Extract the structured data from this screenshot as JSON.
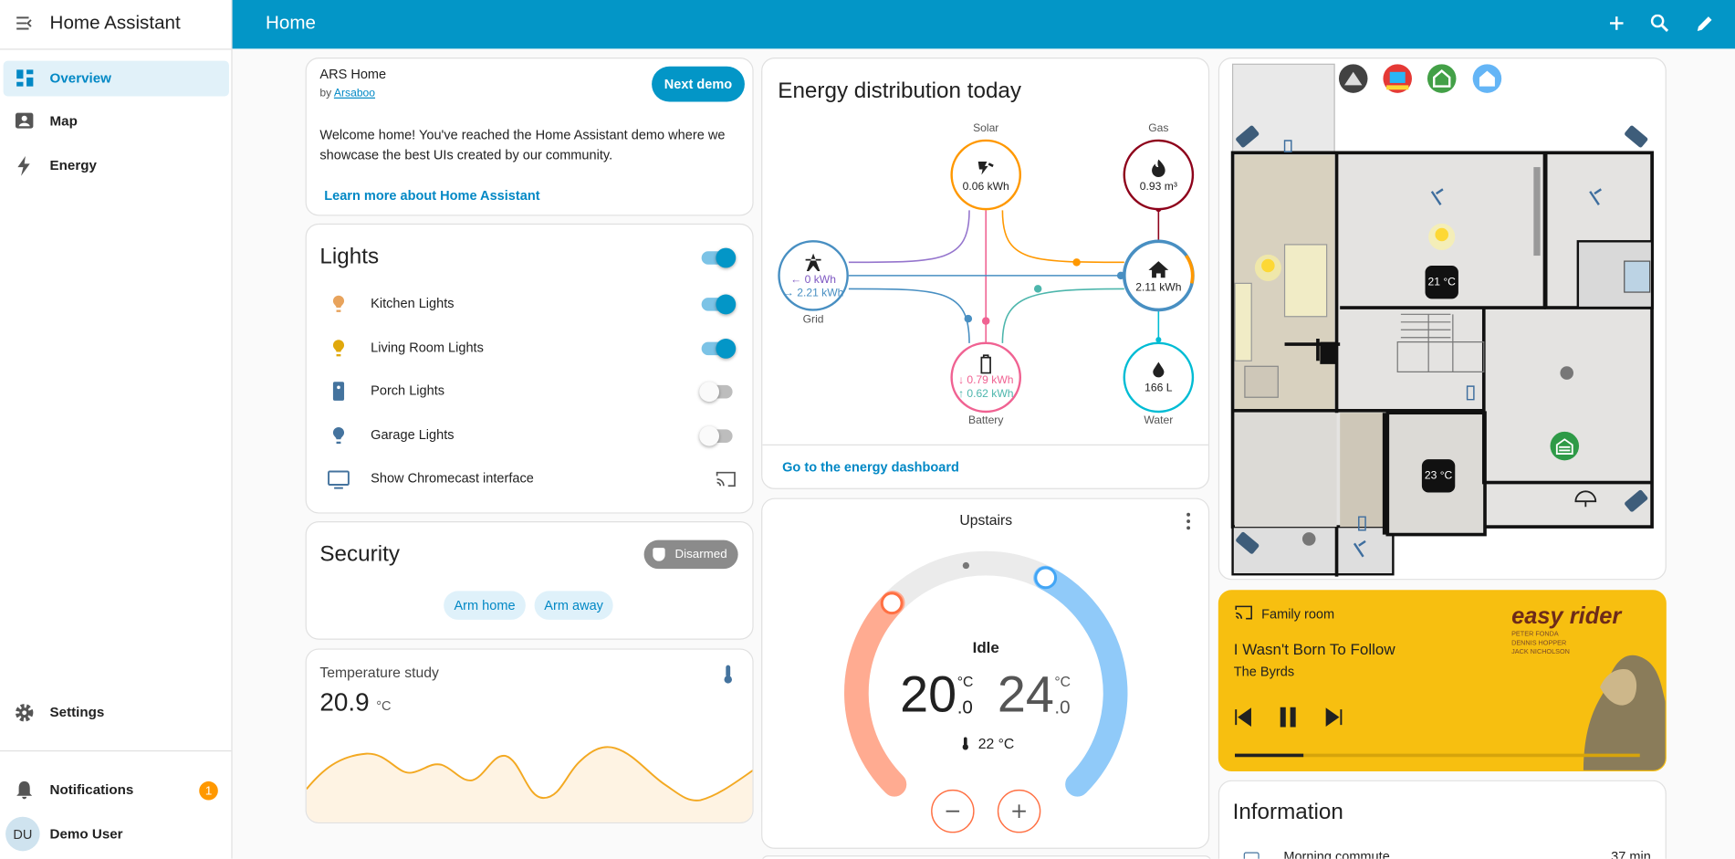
{
  "sidebar": {
    "title": "Home Assistant",
    "nav": [
      "Overview",
      "Map",
      "Energy"
    ],
    "settings": "Settings",
    "notifications": "Notifications",
    "notification_count": "1",
    "user_initials": "DU",
    "user_name": "Demo User"
  },
  "header": {
    "title": "Home"
  },
  "demo_card": {
    "title": "ARS Home",
    "by": "by",
    "author": "Arsaboo",
    "button": "Next demo",
    "text_lines": [
      "Welcome home! You've reached the Home Assistant demo where we",
      "showcase the best UIs created by our community."
    ],
    "link": "Learn more about Home Assistant"
  },
  "lights": {
    "title": "Lights",
    "on": true,
    "items": [
      {
        "name": "Kitchen Lights",
        "on": true
      },
      {
        "name": "Living Room Lights",
        "on": true
      },
      {
        "name": "Porch Lights",
        "on": false
      },
      {
        "name": "Garage Lights",
        "on": false
      },
      {
        "name": "Show Chromecast interface"
      }
    ]
  },
  "security": {
    "title": "Security",
    "state": "Disarmed",
    "buttons": [
      "Arm home",
      "Arm away"
    ]
  },
  "temperature": {
    "title": "Temperature study",
    "value": "20.9",
    "unit": "°C"
  },
  "energy": {
    "title": "Energy distribution today",
    "solar": {
      "label": "Solar",
      "value": "0.06 kWh"
    },
    "gas": {
      "label": "Gas",
      "value": "0.93 m³"
    },
    "grid": {
      "label": "Grid",
      "in": "← 0 kWh",
      "out": "→ 2.21 kWh"
    },
    "home": {
      "value": "2.11 kWh"
    },
    "battery": {
      "label": "Battery",
      "in": "↓ 0.79 kWh",
      "out": "↑ 0.62 kWh"
    },
    "water": {
      "label": "Water",
      "value": "166 L"
    },
    "link": "Go to the energy dashboard"
  },
  "thermostat": {
    "title": "Upstairs",
    "state": "Idle",
    "low": "20",
    "low_decimal": ".0",
    "high": "24",
    "high_decimal": ".0",
    "unit": "°C",
    "current": "22 °C"
  },
  "floorplan": {
    "temps": [
      "21 °C",
      "23 °C"
    ]
  },
  "media": {
    "room": "Family room",
    "title": "I Wasn't Born To Follow",
    "artist": "The Byrds",
    "poster_title": "easy rider",
    "poster_credits": [
      "PETER FONDA",
      "DENNIS HOPPER",
      "JACK NICHOLSON"
    ]
  },
  "information": {
    "title": "Information",
    "items": [
      {
        "name": "Morning commute",
        "value": "37 min"
      }
    ]
  }
}
